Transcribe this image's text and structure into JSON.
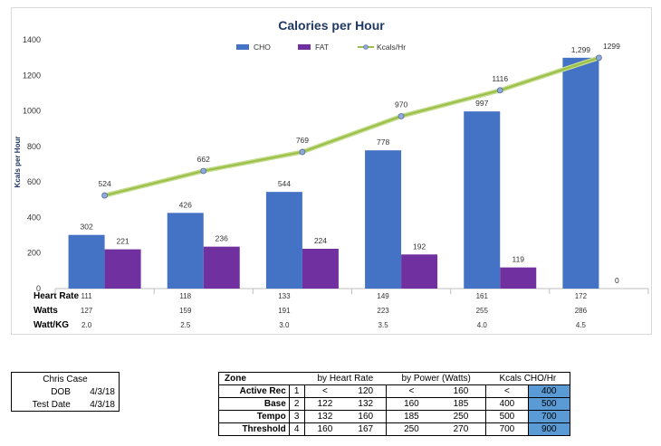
{
  "chart_data": {
    "type": "bar",
    "title": "Calories per Hour",
    "ylabel": "Kcals per Hour",
    "ylim": [
      0,
      1400
    ],
    "yticks": [
      0,
      200,
      400,
      600,
      800,
      1000,
      1200,
      1400
    ],
    "legend_position": "top",
    "series": [
      {
        "name": "CHO",
        "type": "bar",
        "color": "#4472c4",
        "values": [
          302,
          426,
          544,
          778,
          997,
          1299
        ],
        "labels": [
          "302",
          "426",
          "544",
          "778",
          "997",
          "1,299"
        ]
      },
      {
        "name": "FAT",
        "type": "bar",
        "color": "#7030a0",
        "values": [
          221,
          236,
          224,
          192,
          119,
          0
        ],
        "labels": [
          "221",
          "236",
          "224",
          "192",
          "119",
          "0"
        ]
      },
      {
        "name": "Kcals/Hr",
        "type": "line",
        "color": "#9bc14a",
        "values": [
          524,
          662,
          769,
          970,
          1116,
          1299
        ],
        "labels": [
          "524",
          "662",
          "769",
          "970",
          "1116",
          "1299"
        ]
      }
    ],
    "table_rows": [
      {
        "label": "Heart Rate",
        "values": [
          "111",
          "118",
          "133",
          "149",
          "161",
          "172"
        ]
      },
      {
        "label": "Watts",
        "values": [
          "127",
          "159",
          "191",
          "223",
          "255",
          "286"
        ]
      },
      {
        "label": "Watt/KG",
        "values": [
          "2.0",
          "2.5",
          "3.0",
          "3.5",
          "4.0",
          "4.5"
        ]
      }
    ]
  },
  "info": {
    "name": "Chris Case",
    "dob_label": "DOB",
    "dob_value": "4/3/18",
    "test_date_label": "Test Date",
    "test_date_value": "4/3/18"
  },
  "zones": {
    "headers": {
      "zone": "Zone",
      "hr": "by Heart Rate",
      "power": "by Power (Watts)",
      "kcals": "Kcals CHO/Hr"
    },
    "rows": [
      {
        "name": "Active Rec",
        "num": "1",
        "hr_lo": "<",
        "hr_hi": "120",
        "pw_lo": "<",
        "pw_hi": "160",
        "k_lo": "<",
        "k_hi": "400"
      },
      {
        "name": "Base",
        "num": "2",
        "hr_lo": "122",
        "hr_hi": "132",
        "pw_lo": "160",
        "pw_hi": "185",
        "k_lo": "400",
        "k_hi": "500"
      },
      {
        "name": "Tempo",
        "num": "3",
        "hr_lo": "132",
        "hr_hi": "160",
        "pw_lo": "185",
        "pw_hi": "250",
        "k_lo": "500",
        "k_hi": "700"
      },
      {
        "name": "Threshold",
        "num": "4",
        "hr_lo": "160",
        "hr_hi": "167",
        "pw_lo": "250",
        "pw_hi": "270",
        "k_lo": "700",
        "k_hi": "900"
      }
    ],
    "highlight_color": "#5b9bd5"
  }
}
